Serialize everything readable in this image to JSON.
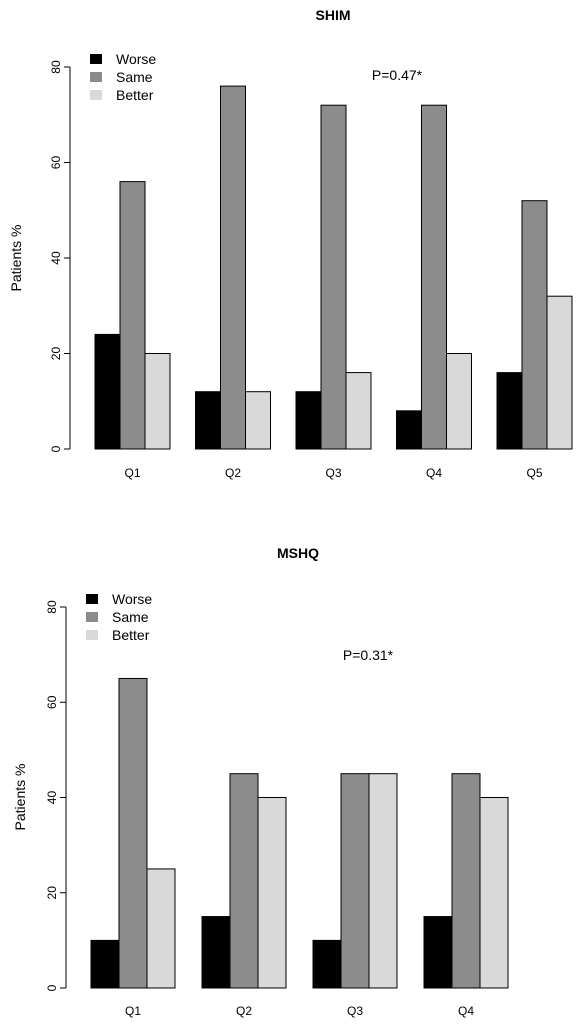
{
  "chart_data": [
    {
      "type": "bar",
      "title": "SHIM",
      "ylabel": "Patients %",
      "xlabel": "",
      "ylim": [
        0,
        80
      ],
      "yticks": [
        0,
        20,
        40,
        60,
        80
      ],
      "categories": [
        "Q1",
        "Q2",
        "Q3",
        "Q4",
        "Q5"
      ],
      "series": [
        {
          "name": "Worse",
          "color": "#000000",
          "values": [
            24,
            12,
            12,
            8,
            16
          ]
        },
        {
          "name": "Same",
          "color": "#8c8c8c",
          "values": [
            56,
            76,
            72,
            72,
            52
          ]
        },
        {
          "name": "Better",
          "color": "#d9d9d9",
          "values": [
            20,
            12,
            16,
            20,
            32
          ]
        }
      ],
      "legend": "top-left",
      "annotation": "P=0.47*",
      "grid": false
    },
    {
      "type": "bar",
      "title": "MSHQ",
      "ylabel": "Patients %",
      "xlabel": "",
      "ylim": [
        0,
        80
      ],
      "yticks": [
        0,
        20,
        40,
        60,
        80
      ],
      "categories": [
        "Q1",
        "Q2",
        "Q3",
        "Q4"
      ],
      "series": [
        {
          "name": "Worse",
          "color": "#000000",
          "values": [
            10,
            15,
            10,
            15
          ]
        },
        {
          "name": "Same",
          "color": "#8c8c8c",
          "values": [
            65,
            45,
            45,
            45
          ]
        },
        {
          "name": "Better",
          "color": "#d9d9d9",
          "values": [
            25,
            40,
            45,
            40
          ]
        }
      ],
      "legend": "top-left",
      "annotation": "P=0.31*",
      "grid": false
    }
  ]
}
